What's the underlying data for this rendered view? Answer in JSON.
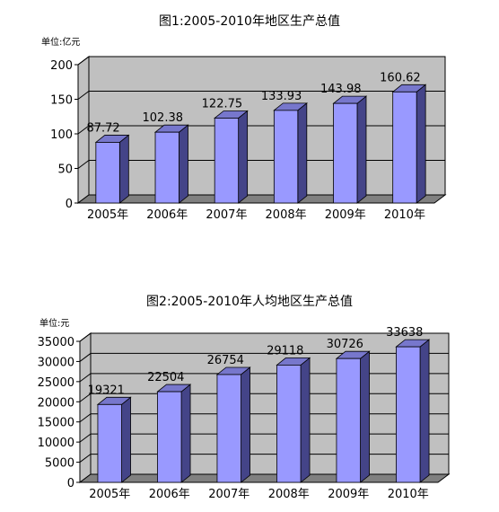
{
  "chart_data": [
    {
      "type": "bar",
      "title": "图1:2005-2010年地区生产总值",
      "unit_label": "单位:亿元",
      "categories": [
        "2005年",
        "2006年",
        "2007年",
        "2008年",
        "2009年",
        "2010年"
      ],
      "values": [
        87.72,
        102.38,
        122.75,
        133.93,
        143.98,
        160.62
      ],
      "data_labels": [
        "87.72",
        "102.38",
        "122.75",
        "133.93",
        "143.98",
        "160.62"
      ],
      "ylim": [
        0,
        200
      ],
      "yticks": [
        0,
        50,
        100,
        150,
        200
      ],
      "ytick_labels": [
        "0",
        "50",
        "100",
        "150",
        "200"
      ],
      "grid": true,
      "style": "3d",
      "colors": {
        "bar_front": "#9999ff",
        "bar_side": "#444488",
        "bar_top": "#7777cc",
        "wall": "#c0c0c0",
        "floor": "#808080"
      }
    },
    {
      "type": "bar",
      "title": "图2:2005-2010年人均地区生产总值",
      "unit_label": "单位:元",
      "categories": [
        "2005年",
        "2006年",
        "2007年",
        "2008年",
        "2009年",
        "2010年"
      ],
      "values": [
        19321,
        22504,
        26754,
        29118,
        30726,
        33638
      ],
      "data_labels": [
        "19321",
        "22504",
        "26754",
        "29118",
        "30726",
        "33638"
      ],
      "ylim": [
        0,
        35000
      ],
      "yticks": [
        0,
        5000,
        10000,
        15000,
        20000,
        25000,
        30000,
        35000
      ],
      "ytick_labels": [
        "0",
        "5000",
        "10000",
        "15000",
        "20000",
        "25000",
        "30000",
        "35000"
      ],
      "grid": true,
      "style": "3d",
      "colors": {
        "bar_front": "#9999ff",
        "bar_side": "#444488",
        "bar_top": "#7777cc",
        "wall": "#c0c0c0",
        "floor": "#808080"
      }
    }
  ]
}
